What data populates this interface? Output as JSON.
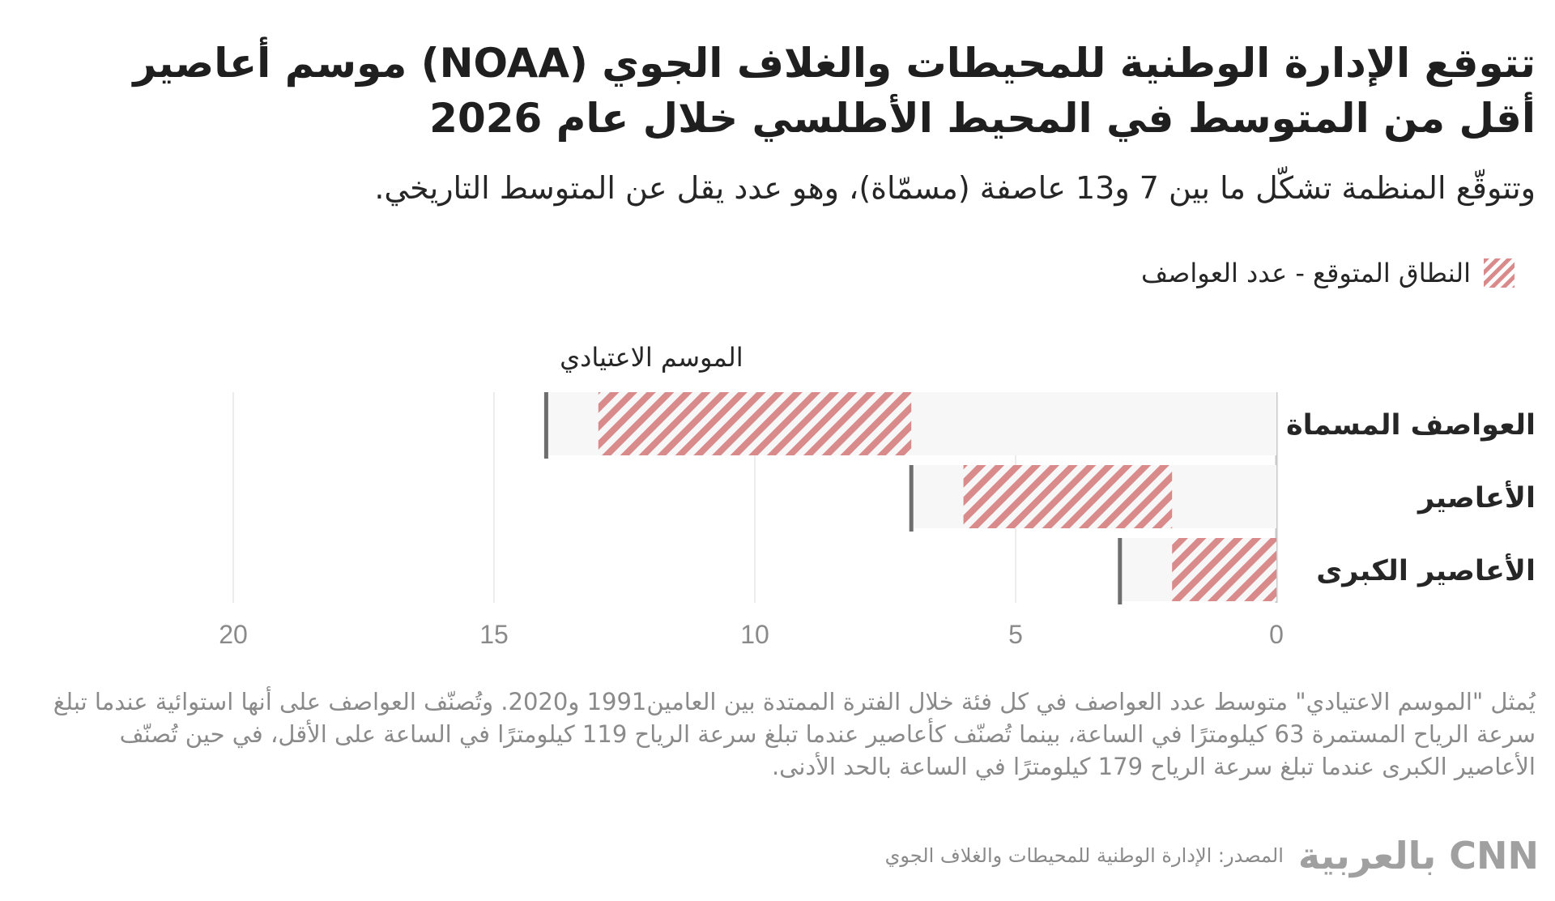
{
  "title": "تتوقع الإدارة الوطنية للمحيطات والغلاف الجوي (NOAA) موسم أعاصير أقل من المتوسط في المحيط الأطلسي خلال عام 2026",
  "subtitle": "وتتوقّع المنظمة تشكّل ما بين 7 و13 عاصفة (مسمّاة)، وهو عدد يقل عن المتوسط التاريخي.",
  "legend": {
    "label": "النطاق المتوقع - عدد العواصف",
    "swatch_color": "#d98a8a"
  },
  "chart_data": {
    "type": "bar",
    "orientation": "horizontal",
    "x_direction": "right-to-left",
    "categories": [
      "العواصف المسماة",
      "الأعاصير",
      "الأعاصير الكبرى"
    ],
    "series": [
      {
        "name": "النطاق المتوقع - عدد العواصف",
        "ranges": [
          [
            7,
            13
          ],
          [
            2,
            6
          ],
          [
            0,
            2
          ]
        ],
        "color": "#d98a8a",
        "pattern": "diagonal-hatch"
      }
    ],
    "average": {
      "label": "الموسم الاعتيادي",
      "values": [
        14,
        7,
        3
      ],
      "color": "#6e6e6e"
    },
    "xlim": [
      0,
      20
    ],
    "xticks": [
      "0",
      "5",
      "10",
      "15",
      "20"
    ],
    "grid": true
  },
  "note": "يُمثل \"الموسم الاعتيادي\" متوسط عدد العواصف في كل فئة خلال الفترة الممتدة بين العامين1991 و2020. وتُصنّف العواصف على أنها استوائية عندما تبلغ سرعة الرياح المستمرة 63 كيلومترًا في الساعة، بينما تُصنّف كأعاصير عندما تبلغ سرعة الرياح 119 كيلومترًا في الساعة على الأقل، في حين تُصنّف الأعاصير الكبرى عندما تبلغ سرعة الرياح 179 كيلومترًا في الساعة بالحد الأدنى.",
  "footer": {
    "logo_text": "CNN بالعربية",
    "source": "المصدر: الإدارة الوطنية للمحيطات والغلاف الجوي"
  }
}
